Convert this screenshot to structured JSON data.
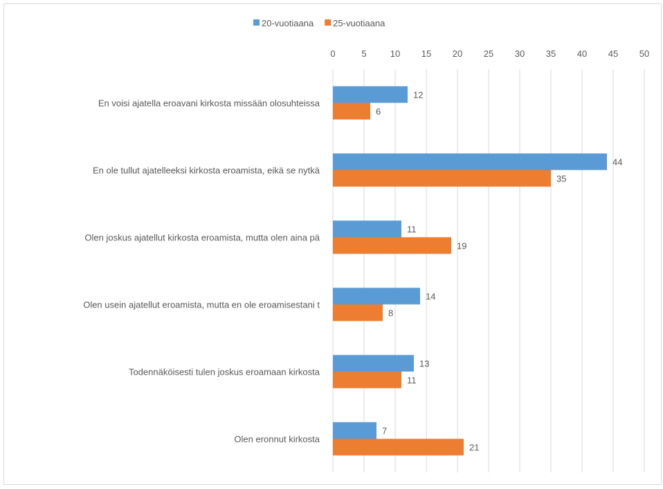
{
  "chart_data": {
    "type": "bar",
    "orientation": "horizontal",
    "title": "",
    "xlabel": "",
    "ylabel": "",
    "xlim": [
      0,
      50
    ],
    "x_ticks": [
      0,
      5,
      10,
      15,
      20,
      25,
      30,
      35,
      40,
      45,
      50
    ],
    "grid": true,
    "legend_position": "top",
    "categories": [
      "En voisi ajatella eroavani kirkosta missään olosuhteissa",
      "En ole tullut ajatelleeksi kirkosta eroamista, eikä se nytkä",
      "Olen joskus ajatellut kirkosta eroamista, mutta olen aina pä",
      "Olen usein ajatellut eroamista, mutta en ole eroamisestani t",
      "Todennäköisesti tulen joskus eroamaan kirkosta",
      "Olen eronnut kirkosta"
    ],
    "series": [
      {
        "name": "20-vuotiaana",
        "color": "#5B9BD5",
        "values": [
          12,
          44,
          11,
          14,
          13,
          7
        ]
      },
      {
        "name": "25-vuotiaana",
        "color": "#ED7D31",
        "values": [
          6,
          35,
          19,
          8,
          11,
          21
        ]
      }
    ]
  }
}
